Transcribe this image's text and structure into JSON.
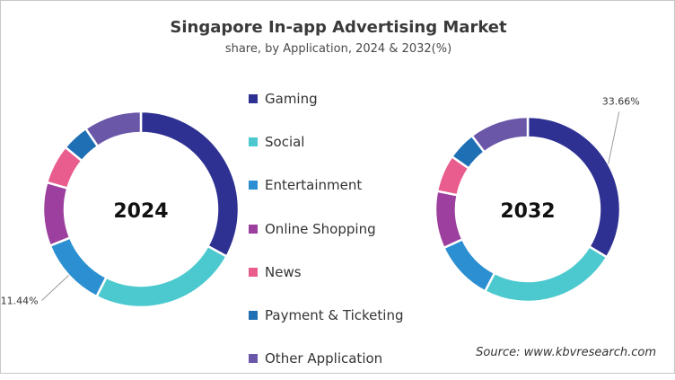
{
  "title": "Singapore In-app Advertising Market",
  "subtitle": "share, by Application, 2024 & 2032(%)",
  "source": "Source: www.kbvresearch.com",
  "chart_data": {
    "type": "pie",
    "categories": [
      "Gaming",
      "Social",
      "Entertainment",
      "Online Shopping",
      "News",
      "Payment & Ticketing",
      "Other Application"
    ],
    "colors": [
      "#2e3192",
      "#4cc9cf",
      "#2b8fd1",
      "#9c3f9e",
      "#e85d8d",
      "#1f6fb5",
      "#6a57a8"
    ],
    "charts": [
      {
        "label": "2024",
        "values": [
          33.0,
          24.5,
          11.44,
          10.5,
          6.5,
          4.5,
          9.56
        ],
        "annotations": [
          {
            "category": "Entertainment",
            "text": "11.44%"
          }
        ]
      },
      {
        "label": "2032",
        "values": [
          33.66,
          24.0,
          10.5,
          10.0,
          6.5,
          5.0,
          10.34
        ],
        "annotations": [
          {
            "category": "Gaming",
            "text": "33.66%"
          }
        ]
      }
    ]
  }
}
